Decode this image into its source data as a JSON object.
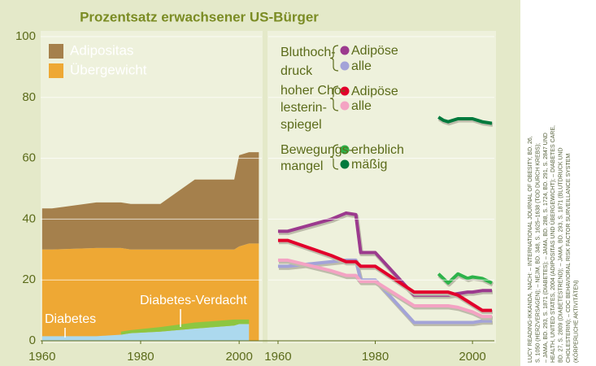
{
  "chart_data": [
    {
      "type": "area",
      "title": "Prozentsatz erwachsener US-Bürger",
      "x": [
        1960,
        1962,
        1971,
        1976,
        1978,
        1984,
        1991,
        1999,
        2000,
        2002,
        2004
      ],
      "series": [
        {
          "name": "Adipositas",
          "color": "#a5804c",
          "values": [
            13.5,
            13.5,
            15,
            15,
            15,
            15,
            23,
            23,
            30,
            30,
            30
          ]
        },
        {
          "name": "Übergewicht",
          "color": "#eea834",
          "values": [
            30,
            30,
            30.5,
            30.5,
            30,
            30,
            30,
            30,
            31,
            32,
            32
          ]
        },
        {
          "name": "Diabetes",
          "color": "#acd9ee",
          "values": [
            1.5,
            1.5,
            1.5,
            2,
            2.5,
            3,
            4,
            5,
            5.5,
            5.5,
            null
          ]
        },
        {
          "name": "Diabetes-Verdacht",
          "color": "#8dc641",
          "values": [
            null,
            null,
            null,
            1,
            1,
            1.5,
            2,
            2,
            1.5,
            1.5,
            null
          ]
        }
      ],
      "xlim": [
        1959.7,
        2004.6
      ],
      "xticks": [
        1960,
        1980,
        2000
      ],
      "ylim": [
        0,
        100
      ],
      "yticks": [
        0,
        20,
        40,
        60,
        80,
        100
      ],
      "grid": true
    },
    {
      "type": "line",
      "x": [
        1960,
        1962,
        1971,
        1974,
        1976,
        1977,
        1980,
        1988,
        1991,
        1993,
        1994,
        1995,
        1997,
        1999,
        2000,
        2002,
        2004
      ],
      "groups": [
        {
          "label": [
            "Bluthoch-",
            "druck"
          ],
          "series": [
            {
              "name": "Adipöse",
              "color": "#9c3a8e",
              "values": [
                36,
                36,
                40,
                42,
                41.5,
                29,
                29,
                15,
                15,
                15,
                15,
                15,
                15.5,
                16,
                16,
                16.5,
                16.5
              ]
            },
            {
              "name": "alle",
              "color": "#a3a3d8",
              "values": [
                24.5,
                24.5,
                26,
                26.5,
                26.5,
                20,
                20,
                6,
                6,
                6,
                6,
                6,
                6,
                6,
                6,
                6.5,
                6.5
              ]
            }
          ]
        },
        {
          "label": [
            "hoher Cho-",
            "lesterin-",
            "spiegel"
          ],
          "series": [
            {
              "name": "Adipöse",
              "color": "#e2002b",
              "values": [
                33,
                33,
                28,
                26,
                26,
                24.5,
                24.5,
                16,
                16,
                16,
                16,
                16,
                15,
                13,
                12,
                10,
                10
              ]
            },
            {
              "name": "alle",
              "color": "#f4a3c3",
              "values": [
                26.5,
                26.5,
                23,
                21.5,
                21.5,
                19.5,
                19.5,
                11.5,
                11.5,
                11.5,
                11.5,
                11.5,
                11,
                10,
                9.5,
                8,
                8
              ]
            }
          ]
        },
        {
          "label": [
            "Bewegungs-",
            "mangel"
          ],
          "series": [
            {
              "name": "erheblich",
              "color": "#2db34a",
              "values": [
                null,
                null,
                null,
                null,
                null,
                null,
                null,
                null,
                null,
                22,
                20.5,
                19,
                22,
                20.5,
                21,
                20.5,
                19
              ]
            },
            {
              "name": "mäßig",
              "color": "#007a3d",
              "values": [
                null,
                null,
                null,
                null,
                null,
                null,
                null,
                null,
                null,
                73.5,
                72.5,
                72,
                73,
                73,
                73,
                72,
                71.5
              ]
            }
          ]
        }
      ],
      "xlim": [
        1958,
        2004.5
      ],
      "xticks": [
        1960,
        1980,
        2000
      ],
      "ylim": [
        0,
        100
      ]
    }
  ],
  "source": [
    "LUCY READING-IKKANDA, NACH: – INTERNATIONAL JOURNAL OF OBESITY, BD. 26,",
    "S. 1050 (HERZVERSAGEN); – NEJM, BD. 348, S. 1625–1638 (TOD DURCH KREBS);",
    "– JAMA, BD. 293, S. 1871 (DIABETES); – JAMA, BD. 288, S. 1724, BD. 291, S. 2847 UND",
    "HEALTH, UNITED STATES, 2004 (ADIPOSITAS UND ÜBERGEWICHT); – DIABETES CARE,",
    "BD. 27, S. 2809 (DIABETESTREND); – JAMA, BD. 293, S. 1871 (BLUTDRUCK UND",
    "CHOLESTERIN); – CDC BEHAVIORAL RISK FACTOR SURVEILLANCE SYSTEM",
    "(KÖRPERLICHE AKTIVITÄTEN)"
  ]
}
